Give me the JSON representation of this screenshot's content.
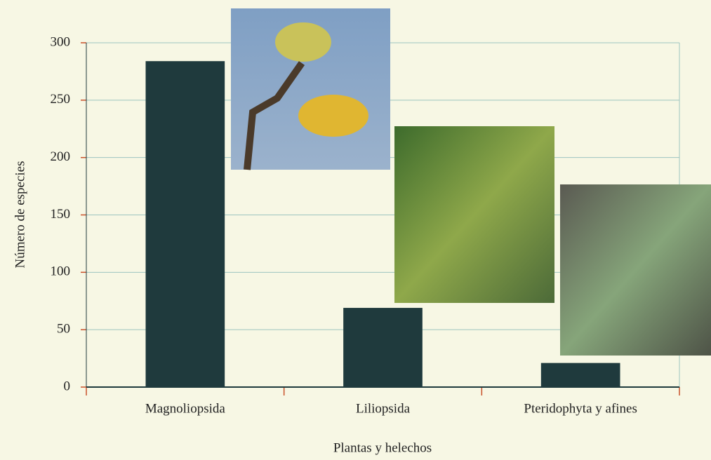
{
  "chart_data": {
    "type": "bar",
    "x_label": "Plantas y helechos",
    "y_label": "Número de especies",
    "categories": [
      "Magnoliopsida",
      "Liliopsida",
      "Pteridophyta y afines"
    ],
    "values": [
      284,
      69,
      21
    ],
    "color": "#1f3a3d",
    "ylim": [
      0,
      300
    ],
    "yticks": [
      0,
      50,
      100,
      150,
      200,
      250,
      300
    ],
    "grid": true
  }
}
